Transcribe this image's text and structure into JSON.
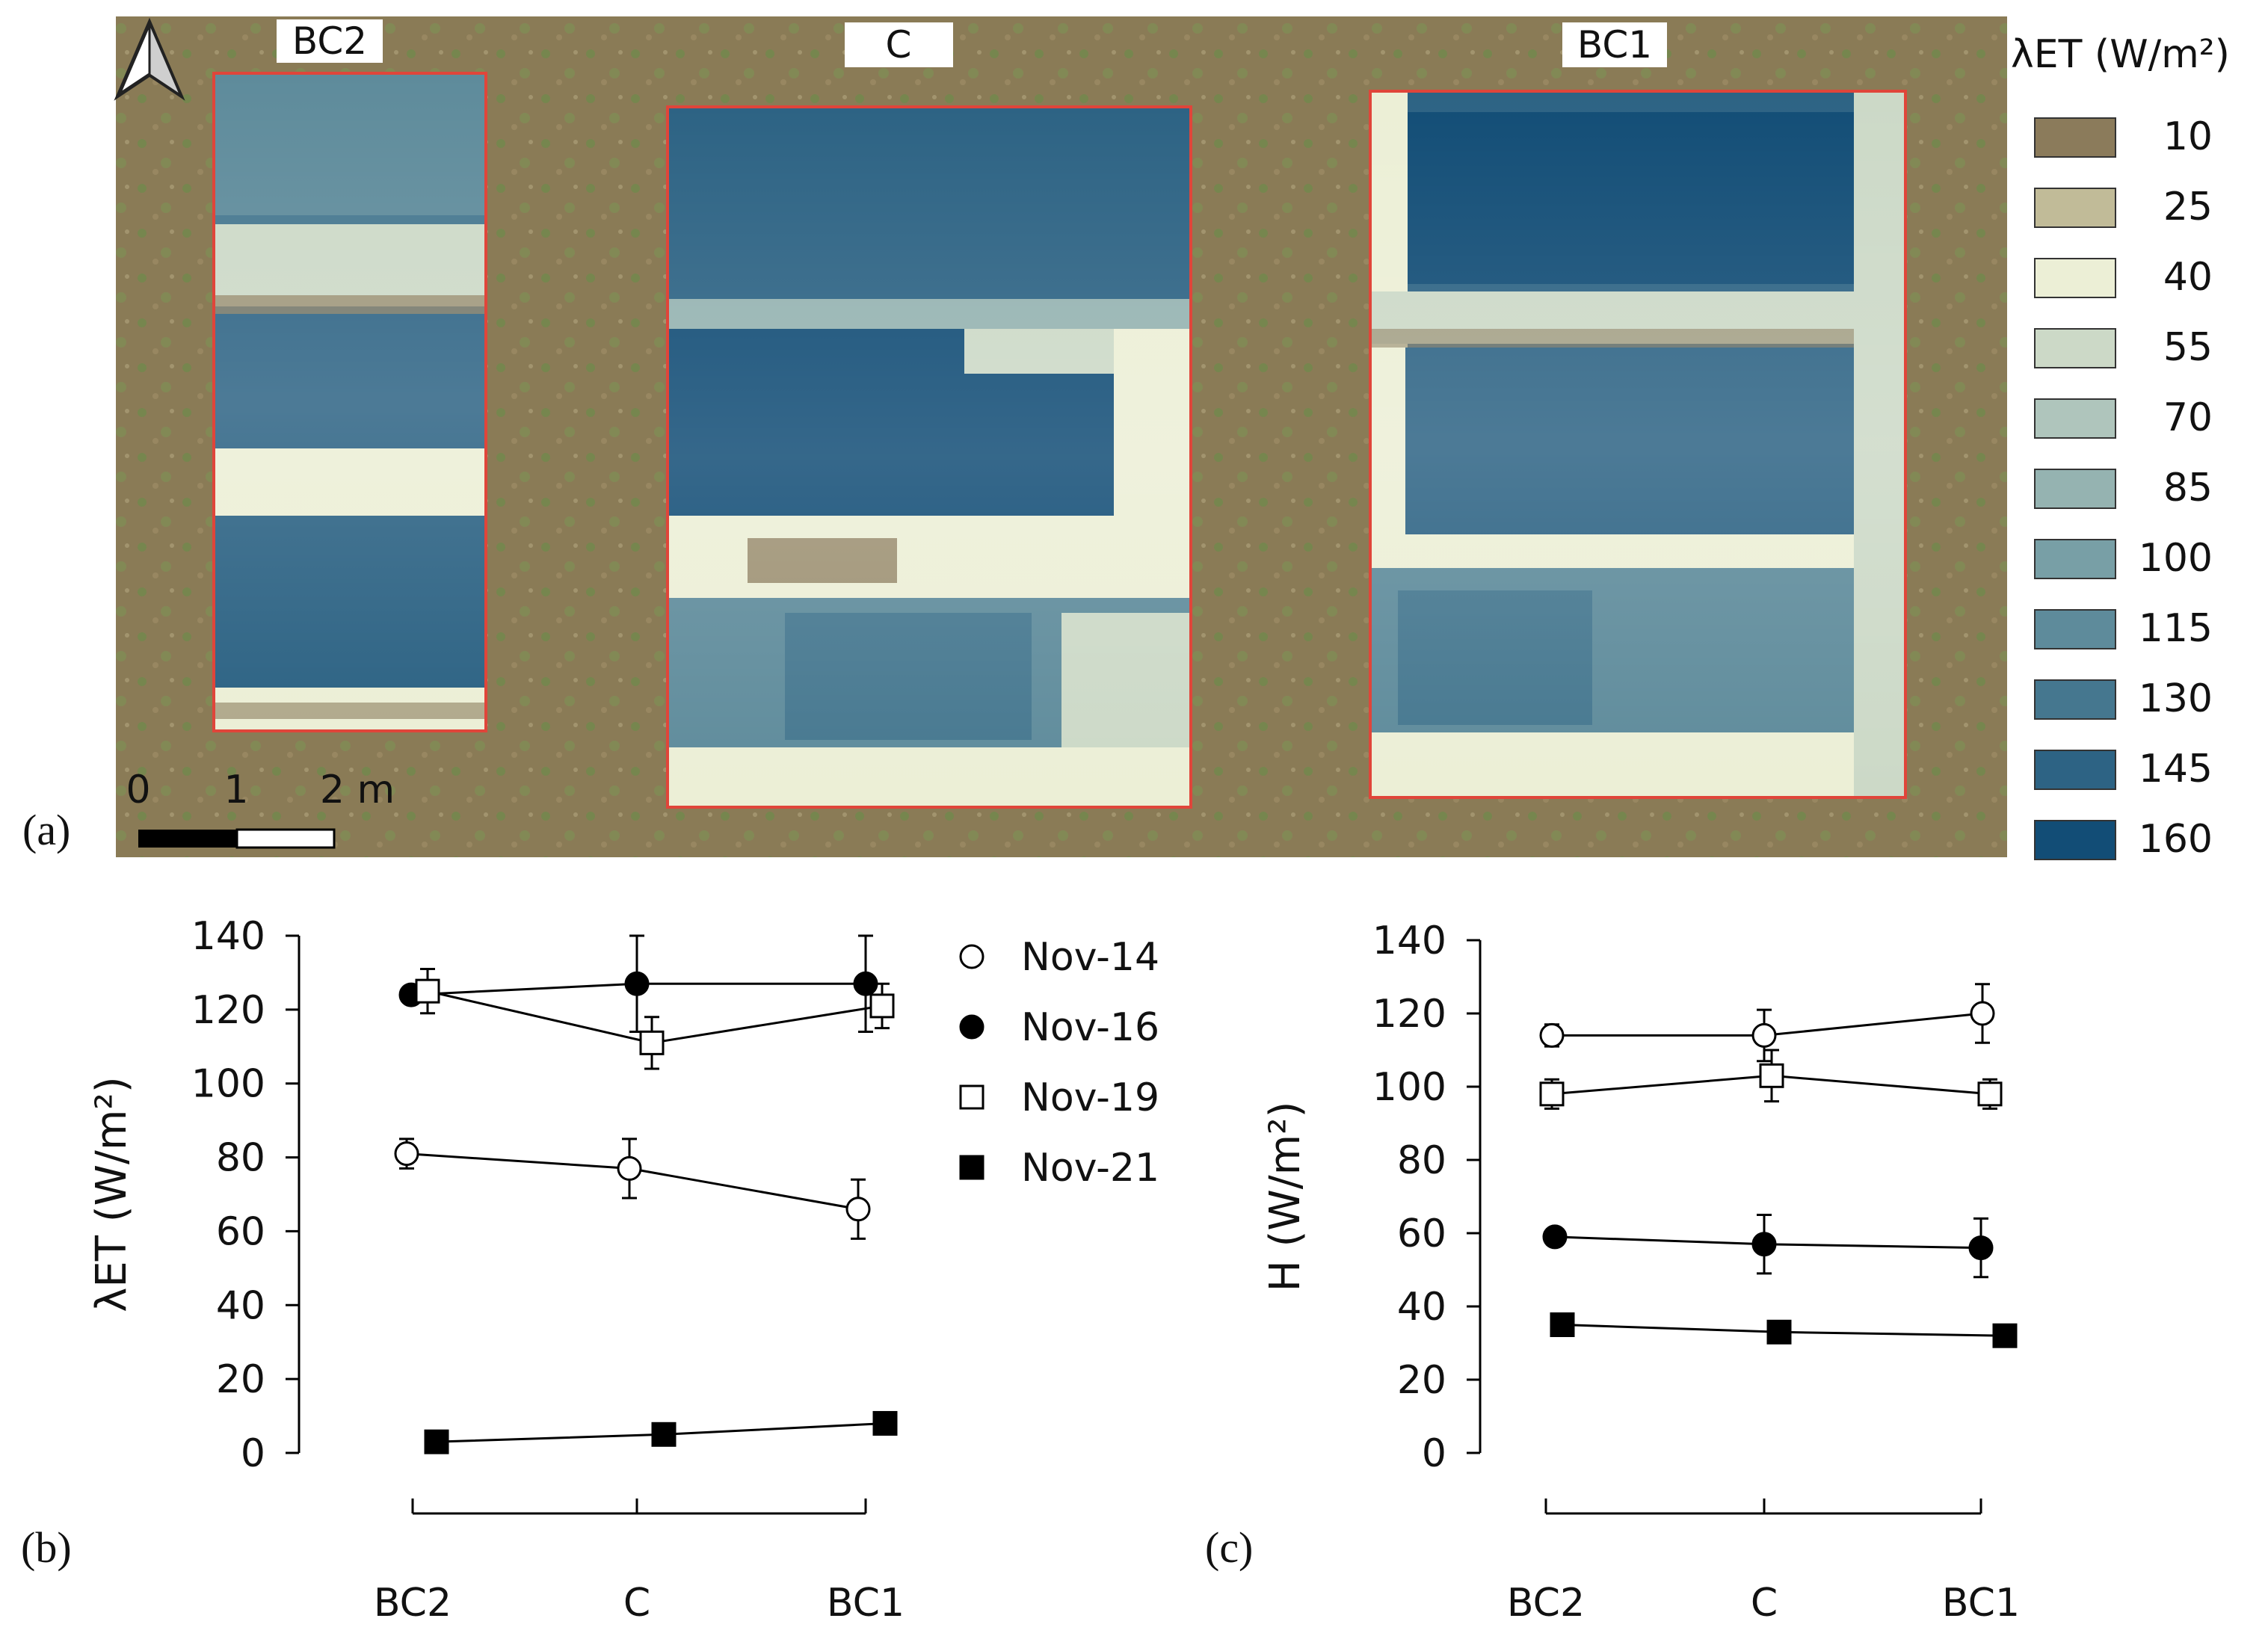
{
  "panel_a": {
    "panel_label": "(a)",
    "plot_labels": [
      "BC2",
      "C",
      "BC1"
    ],
    "colorbar_title": "λET (W/m²)",
    "colorbar": [
      {
        "value": "10",
        "color": "#8b7b5b"
      },
      {
        "value": "25",
        "color": "#c1bb98"
      },
      {
        "value": "40",
        "color": "#ecefd6"
      },
      {
        "value": "55",
        "color": "#ccd9c7"
      },
      {
        "value": "70",
        "color": "#afc5bc"
      },
      {
        "value": "85",
        "color": "#95b3b1"
      },
      {
        "value": "100",
        "color": "#789fa6"
      },
      {
        "value": "115",
        "color": "#5e8b9b"
      },
      {
        "value": "130",
        "color": "#45778f"
      },
      {
        "value": "145",
        "color": "#2d6384"
      },
      {
        "value": "160",
        "color": "#124d76"
      }
    ],
    "scale_bar": {
      "labels": [
        "0",
        "1",
        "2 m"
      ]
    },
    "north_arrow": "north-arrow-icon",
    "colors": {
      "ground": "#8a7b56",
      "grass": "#6e8a4a",
      "plot_border": "#e0453a"
    }
  },
  "legend": [
    {
      "label": "Nov-14",
      "marker": "circle-open"
    },
    {
      "label": "Nov-16",
      "marker": "circle-filled"
    },
    {
      "label": "Nov-19",
      "marker": "square-open"
    },
    {
      "label": "Nov-21",
      "marker": "square-filled"
    }
  ],
  "chart_data": [
    {
      "type": "line",
      "panel_label": "(b)",
      "ylabel": "λET (W/m²)",
      "categories": [
        "BC2",
        "C",
        "BC1"
      ],
      "yticks": [
        "0",
        "20",
        "40",
        "60",
        "80",
        "100",
        "120",
        "140"
      ],
      "ylim": [
        0,
        140
      ],
      "series": [
        {
          "name": "Nov-14",
          "marker": "circle-open",
          "values": [
            81,
            77,
            66
          ],
          "errors": [
            4,
            8,
            8
          ]
        },
        {
          "name": "Nov-16",
          "marker": "circle-filled",
          "values": [
            124,
            127,
            127
          ],
          "errors": [
            0,
            13,
            13
          ]
        },
        {
          "name": "Nov-19",
          "marker": "square-open",
          "values": [
            125,
            111,
            121
          ],
          "errors": [
            6,
            7,
            6
          ]
        },
        {
          "name": "Nov-21",
          "marker": "square-filled",
          "values": [
            3,
            5,
            8
          ],
          "errors": [
            0,
            0,
            0
          ]
        }
      ]
    },
    {
      "type": "line",
      "panel_label": "(c)",
      "ylabel": "H (W/m²)",
      "categories": [
        "BC2",
        "C",
        "BC1"
      ],
      "yticks": [
        "0",
        "20",
        "40",
        "60",
        "80",
        "100",
        "120",
        "140"
      ],
      "ylim": [
        0,
        140
      ],
      "series": [
        {
          "name": "Nov-14",
          "marker": "circle-open",
          "values": [
            114,
            114,
            120
          ],
          "errors": [
            3,
            7,
            8
          ]
        },
        {
          "name": "Nov-16",
          "marker": "circle-filled",
          "values": [
            59,
            57,
            56
          ],
          "errors": [
            0,
            8,
            8
          ]
        },
        {
          "name": "Nov-19",
          "marker": "square-open",
          "values": [
            98,
            103,
            98
          ],
          "errors": [
            4,
            7,
            4
          ]
        },
        {
          "name": "Nov-21",
          "marker": "square-filled",
          "values": [
            35,
            33,
            32
          ],
          "errors": [
            0,
            0,
            0
          ]
        }
      ]
    }
  ]
}
